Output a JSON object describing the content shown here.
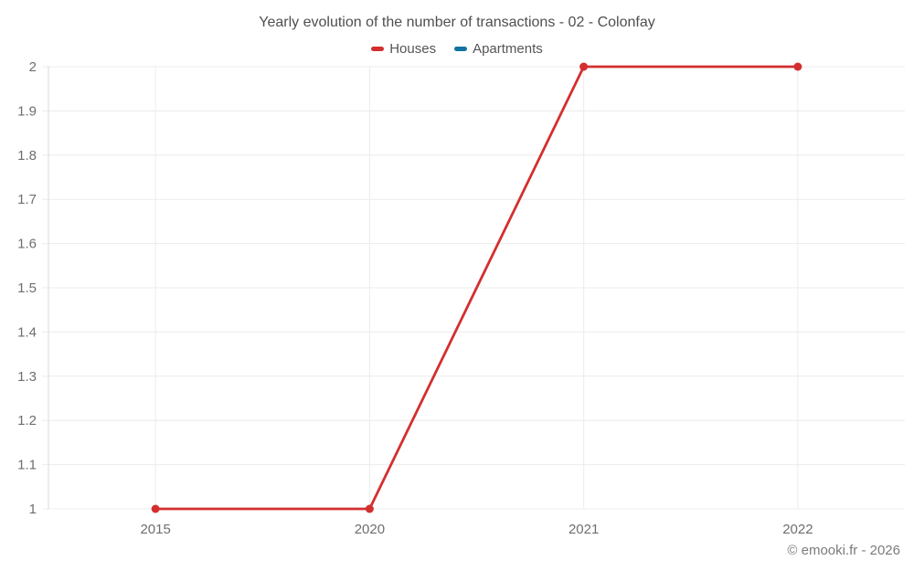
{
  "title": "Yearly evolution of the number of transactions - 02 - Colonfay",
  "watermark": "© emooki.fr - 2026",
  "legend": [
    {
      "label": "Houses",
      "color": "#d32f2f"
    },
    {
      "label": "Apartments",
      "color": "#1273a0"
    }
  ],
  "colors": {
    "grid": "#ececec",
    "axis": "#d9d9d9",
    "tick_label": "#6e6e6e",
    "title": "#4f4f4f",
    "watermark": "#7b7b7b"
  },
  "chart_data": {
    "type": "line",
    "title": "Yearly evolution of the number of transactions - 02 - Colonfay",
    "categories": [
      "2015",
      "2020",
      "2021",
      "2022"
    ],
    "series": [
      {
        "name": "Houses",
        "color": "#d32f2f",
        "values": [
          1,
          1,
          2,
          2
        ]
      },
      {
        "name": "Apartments",
        "color": "#1273a0",
        "values": []
      }
    ],
    "xlabel": "",
    "ylabel": "",
    "ylim": [
      1,
      2
    ],
    "ytick_step": 0.1,
    "ytick_labels": [
      "1",
      "1.1",
      "1.2",
      "1.3",
      "1.4",
      "1.5",
      "1.6",
      "1.7",
      "1.8",
      "1.9",
      "2"
    ],
    "grid": true,
    "legend_position": "top"
  }
}
